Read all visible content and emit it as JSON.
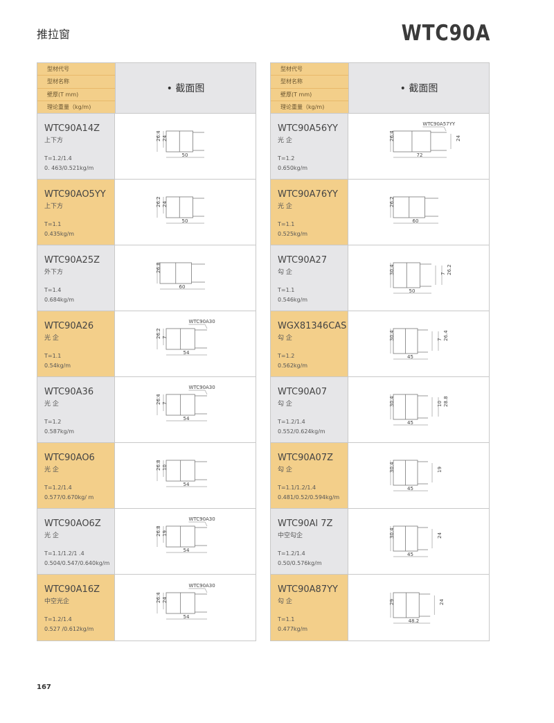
{
  "page": {
    "title_cn": "推拉窗",
    "series": "WTC90A",
    "page_number": "167"
  },
  "header": {
    "labels": [
      "型材代号",
      "型材名称",
      "壁厚(T mm)",
      "理论重量（kg/m)"
    ],
    "section_title": "• 截面图"
  },
  "colors": {
    "orange": "#f3cf8a",
    "grey": "#e6e6e8"
  },
  "left": [
    {
      "model": "WTC90A14Z",
      "name": "上下方",
      "thickness": "T=1.2/1.4",
      "weight": "0. 463/0.521kg/m",
      "dims": {
        "left": [
          "26.4",
          "24"
        ],
        "right": [],
        "bottom": "50",
        "callout": ""
      }
    },
    {
      "model": "WTC90AO5YY",
      "name": "上下方",
      "thickness": "T=1.1",
      "weight": "0.435kg/m",
      "dims": {
        "left": [
          "26.2",
          "24"
        ],
        "right": [],
        "bottom": "50",
        "callout": ""
      }
    },
    {
      "model": "WTC90A25Z",
      "name": "外下方",
      "thickness": "T=1.4",
      "weight": "0.684kg/m",
      "dims": {
        "left": [
          "26.8"
        ],
        "right": [],
        "bottom": "60",
        "callout": ""
      }
    },
    {
      "model": "WTC90A26",
      "name": "光 企",
      "thickness": "T=1.1",
      "weight": "0.54kg/m",
      "dims": {
        "left": [
          "26.2",
          "7"
        ],
        "right": [],
        "bottom": "54",
        "callout": "WTC90A30"
      }
    },
    {
      "model": "WTC90A36",
      "name": "光 企",
      "thickness": "T=1.2",
      "weight": "0.587kg/m",
      "dims": {
        "left": [
          "26.4",
          "7"
        ],
        "right": [],
        "bottom": "54",
        "callout": "WTC90A30"
      }
    },
    {
      "model": "WTC90AO6",
      "name": "光 企",
      "thickness": "T=1.2/1.4",
      "weight": "0.577/0.670kg/ m",
      "dims": {
        "left": [
          "26.8",
          "10"
        ],
        "right": [],
        "bottom": "54",
        "callout": ""
      }
    },
    {
      "model": "WTC90AO6Z",
      "name": "光 企",
      "thickness": "T=1.1/1.2/1 .4",
      "weight": "0.504/0.547/0.640kg/m",
      "dims": {
        "left": [
          "26.8",
          "19"
        ],
        "right": [],
        "bottom": "54",
        "callout": "WTC90A30"
      }
    },
    {
      "model": "WTC90A16Z",
      "name": "中空光企",
      "thickness": "T=1.2/1.4",
      "weight": "0.527 /0.612kg/m",
      "dims": {
        "left": [
          "26.4",
          "24"
        ],
        "right": [],
        "bottom": "54",
        "callout": "WTC90A30"
      }
    }
  ],
  "right": [
    {
      "model": "WTC90A56YY",
      "name": "光 企",
      "thickness": "T=1.2",
      "weight": "0.650kg/m",
      "dims": {
        "left": [
          "26.4"
        ],
        "right": [
          "24"
        ],
        "bottom": "72",
        "callout": "WTC90A57YY"
      }
    },
    {
      "model": "WTC90A76YY",
      "name": "光 企",
      "thickness": "T=1.1",
      "weight": "0.525kg/m",
      "dims": {
        "left": [
          "26.2"
        ],
        "right": [],
        "bottom": "60",
        "callout": ""
      }
    },
    {
      "model": "WTC90A27",
      "name": "勾 企",
      "thickness": "T=1.1",
      "weight": "0.546kg/m",
      "dims": {
        "left": [
          "30.4"
        ],
        "right": [
          "7",
          "26.2"
        ],
        "bottom": "50",
        "callout": ""
      }
    },
    {
      "model": "WGX81346CAS",
      "name": "勾 企",
      "thickness": "T=1.2",
      "weight": "0.562kg/m",
      "dims": {
        "left": [
          "30.4"
        ],
        "right": [
          "7",
          "26.4"
        ],
        "bottom": "45",
        "callout": ""
      }
    },
    {
      "model": "WTC90A07",
      "name": "勾 企",
      "thickness": "T=1.2/1.4",
      "weight": "0.552/0.624kg/m",
      "dims": {
        "left": [
          "30.4"
        ],
        "right": [
          "10",
          "28.8"
        ],
        "bottom": "45",
        "callout": ""
      }
    },
    {
      "model": "WTC90A07Z",
      "name": "勾 企",
      "thickness": "T=1.1/1.2/1.4",
      "weight": "0.481/0.52/0.594kg/m",
      "dims": {
        "left": [
          "30.4"
        ],
        "right": [
          "19"
        ],
        "bottom": "45",
        "callout": ""
      }
    },
    {
      "model": "WTC90Al 7Z",
      "name": "中空勾企",
      "thickness": "T=1.2/1.4",
      "weight": "0.50/0.576kg/m",
      "dims": {
        "left": [
          "30.4"
        ],
        "right": [
          "24"
        ],
        "bottom": "45",
        "callout": ""
      }
    },
    {
      "model": "WTC90A87YY",
      "name": "勾 企",
      "thickness": "T=1.1",
      "weight": "0.477kg/m",
      "dims": {
        "left": [
          "29"
        ],
        "right": [
          "24"
        ],
        "bottom": "48.2",
        "callout": ""
      }
    }
  ]
}
